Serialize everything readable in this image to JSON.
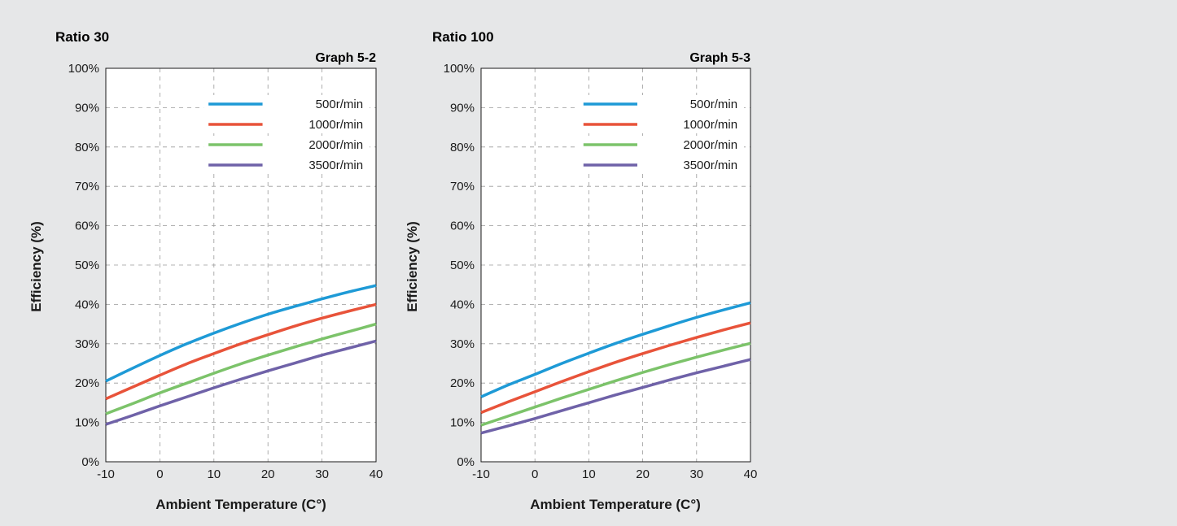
{
  "colors": {
    "background": "#e6e7e8",
    "plot_background": "#ffffff",
    "grid": "#9a9a9a",
    "series": [
      "#1e9ad6",
      "#e8533a",
      "#7cc36a",
      "#6f62a8"
    ]
  },
  "chart_data": [
    {
      "type": "line",
      "title": "Ratio 30",
      "subtitle": "Graph 5-2",
      "xlabel": "Ambient Temperature (C°)",
      "ylabel": "Efficiency (%)",
      "xlim": [
        -10,
        40
      ],
      "ylim": [
        0,
        100
      ],
      "xticks": [
        -10,
        0,
        10,
        20,
        30,
        40
      ],
      "xtick_labels": [
        "-10",
        "0",
        "10",
        "20",
        "30",
        "40"
      ],
      "yticks": [
        0,
        10,
        20,
        30,
        40,
        50,
        60,
        70,
        80,
        90,
        100
      ],
      "ytick_labels": [
        "0%",
        "10%",
        "20%",
        "30%",
        "40%",
        "50%",
        "60%",
        "70%",
        "80%",
        "90%",
        "100%"
      ],
      "grid": true,
      "legend_position": "top-right",
      "x": [
        -10,
        -5,
        0,
        5,
        10,
        15,
        20,
        25,
        30,
        35,
        40
      ],
      "series": [
        {
          "name": "500r/min",
          "values": [
            20.5,
            23.8,
            27.0,
            30.0,
            32.7,
            35.2,
            37.5,
            39.5,
            41.4,
            43.2,
            44.8
          ]
        },
        {
          "name": "1000r/min",
          "values": [
            16.0,
            19.0,
            22.0,
            24.9,
            27.5,
            30.0,
            32.3,
            34.5,
            36.5,
            38.3,
            40.0
          ]
        },
        {
          "name": "2000r/min",
          "values": [
            12.2,
            14.8,
            17.5,
            20.0,
            22.5,
            24.9,
            27.1,
            29.2,
            31.2,
            33.1,
            35.0
          ]
        },
        {
          "name": "3500r/min",
          "values": [
            9.5,
            11.8,
            14.2,
            16.5,
            18.8,
            21.0,
            23.1,
            25.1,
            27.1,
            28.9,
            30.7
          ]
        }
      ]
    },
    {
      "type": "line",
      "title": "Ratio 100",
      "subtitle": "Graph 5-3",
      "xlabel": "Ambient Temperature (C°)",
      "ylabel": "Efficiency (%)",
      "xlim": [
        -10,
        40
      ],
      "ylim": [
        0,
        100
      ],
      "xticks": [
        -10,
        0,
        10,
        20,
        30,
        40
      ],
      "xtick_labels": [
        "-10",
        "0",
        "10",
        "20",
        "30",
        "40"
      ],
      "yticks": [
        0,
        10,
        20,
        30,
        40,
        50,
        60,
        70,
        80,
        90,
        100
      ],
      "ytick_labels": [
        "0%",
        "10%",
        "20%",
        "30%",
        "40%",
        "50%",
        "60%",
        "70%",
        "80%",
        "90%",
        "100%"
      ],
      "grid": true,
      "legend_position": "top-right",
      "x": [
        -10,
        -5,
        0,
        5,
        10,
        15,
        20,
        25,
        30,
        35,
        40
      ],
      "series": [
        {
          "name": "500r/min",
          "values": [
            16.5,
            19.5,
            22.2,
            25.0,
            27.6,
            30.1,
            32.4,
            34.6,
            36.7,
            38.6,
            40.4
          ]
        },
        {
          "name": "1000r/min",
          "values": [
            12.5,
            15.2,
            17.8,
            20.4,
            22.9,
            25.3,
            27.5,
            29.6,
            31.6,
            33.5,
            35.3
          ]
        },
        {
          "name": "2000r/min",
          "values": [
            9.3,
            11.6,
            13.9,
            16.2,
            18.4,
            20.6,
            22.7,
            24.7,
            26.6,
            28.4,
            30.1
          ]
        },
        {
          "name": "3500r/min",
          "values": [
            7.3,
            9.1,
            11.0,
            13.0,
            15.0,
            17.0,
            18.9,
            20.8,
            22.6,
            24.3,
            26.0
          ]
        }
      ]
    }
  ]
}
